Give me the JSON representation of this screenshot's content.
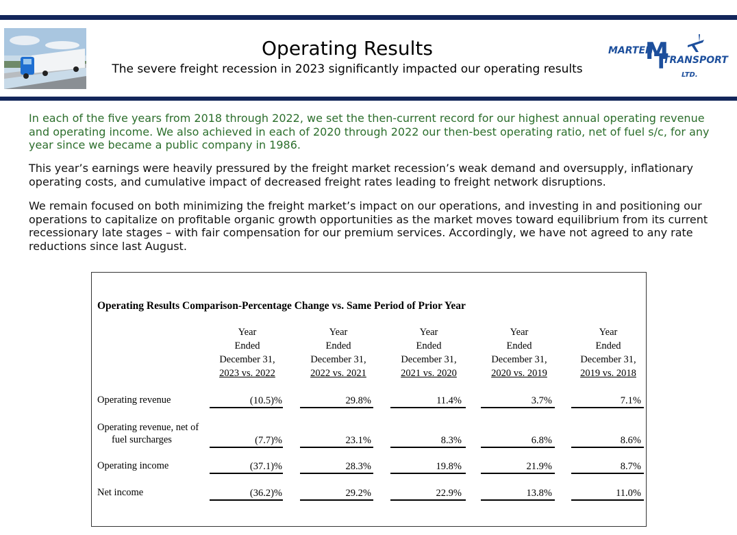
{
  "header": {
    "title": "Operating Results",
    "subtitle": "The severe freight recession in 2023 significantly impacted our operating results"
  },
  "logo": {
    "name": "MARTEN",
    "initials": [
      "M",
      "T"
    ],
    "word": "TRANSPORT",
    "suffix": "LTD."
  },
  "paragraphs": [
    "In each of the five years from 2018 through 2022, we set the then-current record for our highest annual operating revenue and operating income. We also achieved in each of 2020 through 2022 our then-best operating ratio, net of fuel s/c, for any year since we became a public company in 1986.",
    "This year’s earnings were heavily pressured by the freight market recession’s weak demand and oversupply, inflationary operating costs, and cumulative impact of decreased freight rates leading to freight network disruptions.",
    "We remain focused on both minimizing the freight market’s impact on our operations, and investing in and positioning our operations to capitalize on profitable organic growth opportunities as the market moves toward equilibrium from its current recessionary late stages – with fair compensation for our premium services. Accordingly, we have not agreed to any rate reductions since last August."
  ],
  "table": {
    "title": "Operating Results Comparison-Percentage Change vs. Same Period of Prior Year",
    "columns": [
      [
        "Year",
        "Ended",
        "December 31,",
        "2023 vs. 2022"
      ],
      [
        "Year",
        "Ended",
        "December 31,",
        "2022 vs. 2021"
      ],
      [
        "Year",
        "Ended",
        "December 31,",
        "2021 vs. 2020"
      ],
      [
        "Year",
        "Ended",
        "December 31,",
        "2020 vs. 2019"
      ],
      [
        "Year",
        "Ended",
        "December 31,",
        "2019 vs. 2018"
      ]
    ],
    "rows": [
      {
        "label": [
          "Operating revenue"
        ],
        "values": [
          "(10.5)%",
          "29.8%",
          "11.4%",
          "3.7%",
          "7.1%"
        ]
      },
      {
        "label": [
          "Operating revenue, net of",
          "fuel surcharges"
        ],
        "values": [
          "(7.7)%",
          "23.1%",
          "8.3%",
          "6.8%",
          "8.6%"
        ]
      },
      {
        "label": [
          "Operating income"
        ],
        "values": [
          "(37.1)%",
          "28.3%",
          "19.8%",
          "21.9%",
          "8.7%"
        ]
      },
      {
        "label": [
          "Net income"
        ],
        "values": [
          "(36.2)%",
          "29.2%",
          "22.9%",
          "13.8%",
          "11.0%"
        ]
      }
    ]
  }
}
